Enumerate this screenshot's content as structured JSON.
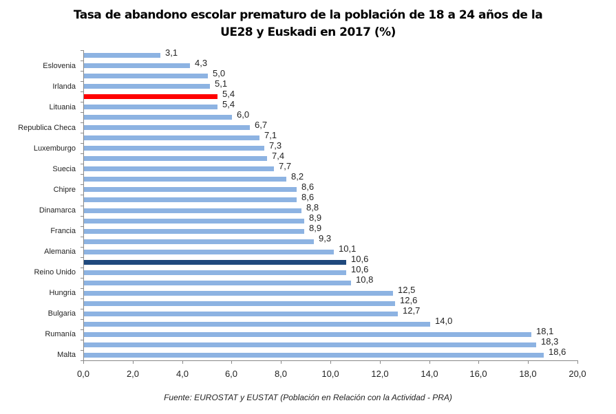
{
  "chart_data": {
    "type": "bar",
    "orientation": "horizontal",
    "title": "Tasa de abandono escolar prematuro de la población de 18 a 24 años de la UE28 y Euskadi en 2017 (%)",
    "title_lines": [
      "Tasa de abandono escolar prematuro de la población de 18 a 24 años de la",
      "UE28 y Euskadi en 2017 (%)"
    ],
    "xlabel": "",
    "ylabel": "",
    "xlim": [
      0,
      20
    ],
    "xticks": [
      "0,0",
      "2,0",
      "4,0",
      "6,0",
      "8,0",
      "10,0",
      "12,0",
      "14,0",
      "16,0",
      "18,0",
      "20,0"
    ],
    "grid": false,
    "legend": null,
    "colors": {
      "default": "#8db3e2",
      "euskadi": "#ff0000",
      "ue28": "#1f497d"
    },
    "categories": [
      "",
      "Eslovenia",
      "",
      "Irlanda",
      "",
      "Lituania",
      "",
      "Republica Checa",
      "",
      "Luxemburgo",
      "",
      "Suecia",
      "",
      "Chipre",
      "",
      "Dinamarca",
      "",
      "Francia",
      "",
      "Alemania",
      "",
      "Reino Unido",
      "",
      "Hungria",
      "",
      "Bulgaria",
      "",
      "Rumanía",
      "",
      "Malta"
    ],
    "values": [
      3.1,
      4.3,
      5.0,
      5.1,
      5.4,
      5.4,
      6.0,
      6.7,
      7.1,
      7.3,
      7.4,
      7.7,
      8.2,
      8.6,
      8.6,
      8.8,
      8.9,
      8.9,
      9.3,
      10.1,
      10.6,
      10.6,
      10.8,
      12.5,
      12.6,
      12.7,
      14.0,
      18.1,
      18.3,
      18.6
    ],
    "value_labels": [
      "3,1",
      "4,3",
      "5,0",
      "5,1",
      "5,4",
      "5,4",
      "6,0",
      "6,7",
      "7,1",
      "7,3",
      "7,4",
      "7,7",
      "8,2",
      "8,6",
      "8,6",
      "8,8",
      "8,9",
      "8,9",
      "9,3",
      "10,1",
      "10,6",
      "10,6",
      "10,8",
      "12,5",
      "12,6",
      "12,7",
      "14,0",
      "18,1",
      "18,3",
      "18,6"
    ],
    "highlights": [
      {
        "index": 4,
        "color": "#ff0000",
        "meaning": "Euskadi"
      },
      {
        "index": 20,
        "color": "#1f497d",
        "meaning": "UE28"
      }
    ],
    "source": "Fuente: EUROSTAT  y EUSTAT (Población en Relación con la Actividad - PRA)"
  }
}
